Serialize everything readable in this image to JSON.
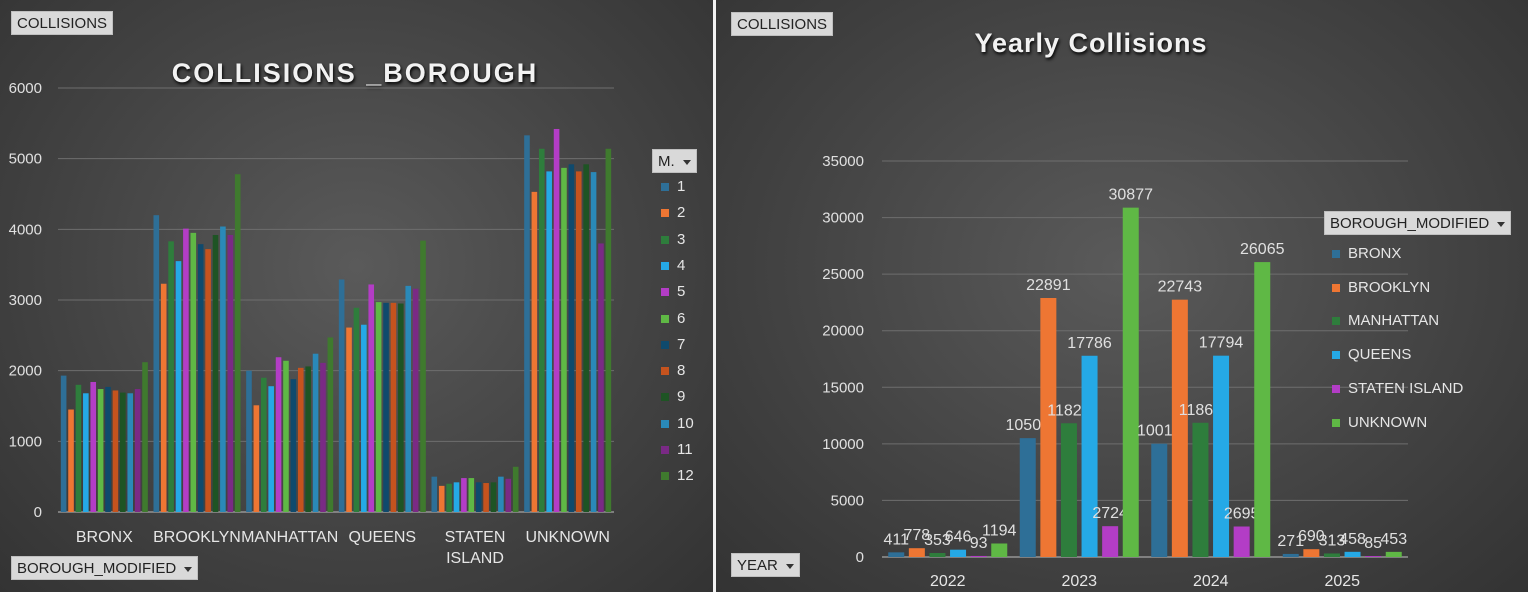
{
  "colors": {
    "series": [
      "#2e6f97",
      "#ee7633",
      "#2e7d3c",
      "#25a9e6",
      "#b33dc6",
      "#5fb845",
      "#0f4a6d",
      "#c5531e",
      "#1e5424",
      "#2a89b8",
      "#7a2a85",
      "#3f7a2e"
    ],
    "borough": [
      "#2e6f97",
      "#ee7633",
      "#2e7d3c",
      "#25a9e6",
      "#b33dc6",
      "#5fb845"
    ]
  },
  "left": {
    "field_button_top": "COLLISIONS",
    "field_button_bottom": "BOROUGH_MODIFIED",
    "legend_title": "M.",
    "chart_data": {
      "type": "bar",
      "title": "COLLISIONS _BOROUGH",
      "xlabel": "",
      "ylabel": "",
      "ylim": [
        0,
        6000
      ],
      "yticks": [
        "0",
        "1000",
        "2000",
        "3000",
        "4000",
        "5000",
        "6000"
      ],
      "grid": true,
      "legend_placement": "right",
      "categories": [
        "BRONX",
        "BROOKLYN",
        "MANHATTAN",
        "QUEENS",
        "STATEN ISLAND",
        "UNKNOWN"
      ],
      "category_lines": [
        [
          "BRONX"
        ],
        [
          "BROOKLYN"
        ],
        [
          "MANHATTAN"
        ],
        [
          "QUEENS"
        ],
        [
          "STATEN",
          "ISLAND"
        ],
        [
          "UNKNOWN"
        ]
      ],
      "series": [
        {
          "name": "1",
          "values": [
            1930,
            4200,
            2000,
            3290,
            500,
            5330
          ]
        },
        {
          "name": "2",
          "values": [
            1450,
            3230,
            1510,
            2610,
            370,
            4530
          ]
        },
        {
          "name": "3",
          "values": [
            1800,
            3830,
            1900,
            2890,
            400,
            5140
          ]
        },
        {
          "name": "4",
          "values": [
            1680,
            3550,
            1780,
            2650,
            420,
            4820
          ]
        },
        {
          "name": "5",
          "values": [
            1840,
            4010,
            2190,
            3220,
            480,
            5420
          ]
        },
        {
          "name": "6",
          "values": [
            1740,
            3950,
            2140,
            2970,
            480,
            4870
          ]
        },
        {
          "name": "7",
          "values": [
            1770,
            3790,
            1880,
            2960,
            420,
            4920
          ]
        },
        {
          "name": "8",
          "values": [
            1720,
            3720,
            2040,
            2960,
            410,
            4820
          ]
        },
        {
          "name": "9",
          "values": [
            1690,
            3920,
            2060,
            2950,
            420,
            4920
          ]
        },
        {
          "name": "10",
          "values": [
            1680,
            4040,
            2240,
            3200,
            500,
            4810
          ]
        },
        {
          "name": "11",
          "values": [
            1740,
            3920,
            2110,
            3160,
            470,
            3800
          ]
        },
        {
          "name": "12",
          "values": [
            2120,
            4780,
            2470,
            3840,
            640,
            5140
          ]
        }
      ]
    }
  },
  "right": {
    "field_button_top": "COLLISIONS",
    "field_button_bottom": "YEAR",
    "legend_title": "BOROUGH_MODIFIED",
    "chart_data": {
      "type": "bar",
      "title": "Yearly Collisions",
      "xlabel": "",
      "ylabel": "",
      "ylim": [
        0,
        35000
      ],
      "yticks": [
        "0",
        "5000",
        "10000",
        "15000",
        "20000",
        "25000",
        "30000",
        "35000"
      ],
      "grid": true,
      "legend_placement": "right",
      "categories": [
        "2022",
        "2023",
        "2024",
        "2025"
      ],
      "series": [
        {
          "name": "BRONX",
          "values": [
            411,
            10505,
            10013,
            271
          ],
          "labels": [
            "411",
            "10505",
            "10013",
            "271"
          ]
        },
        {
          "name": "BROOKLYN",
          "values": [
            778,
            22891,
            22743,
            690
          ],
          "labels": [
            "778",
            "22891",
            "22743",
            "690"
          ]
        },
        {
          "name": "MANHATTAN",
          "values": [
            353,
            11821,
            11864,
            313
          ],
          "labels": [
            "353",
            "11821",
            "11864",
            "313"
          ]
        },
        {
          "name": "QUEENS",
          "values": [
            646,
            17786,
            17794,
            458
          ],
          "labels": [
            "646",
            "17786",
            "17794",
            "458"
          ]
        },
        {
          "name": "STATEN ISLAND",
          "values": [
            93,
            2724,
            2695,
            85
          ],
          "labels": [
            "93",
            "2724",
            "2695",
            "85"
          ]
        },
        {
          "name": "UNKNOWN",
          "values": [
            1194,
            30877,
            26065,
            453
          ],
          "labels": [
            "1194",
            "30877",
            "26065",
            "453"
          ]
        }
      ]
    }
  }
}
